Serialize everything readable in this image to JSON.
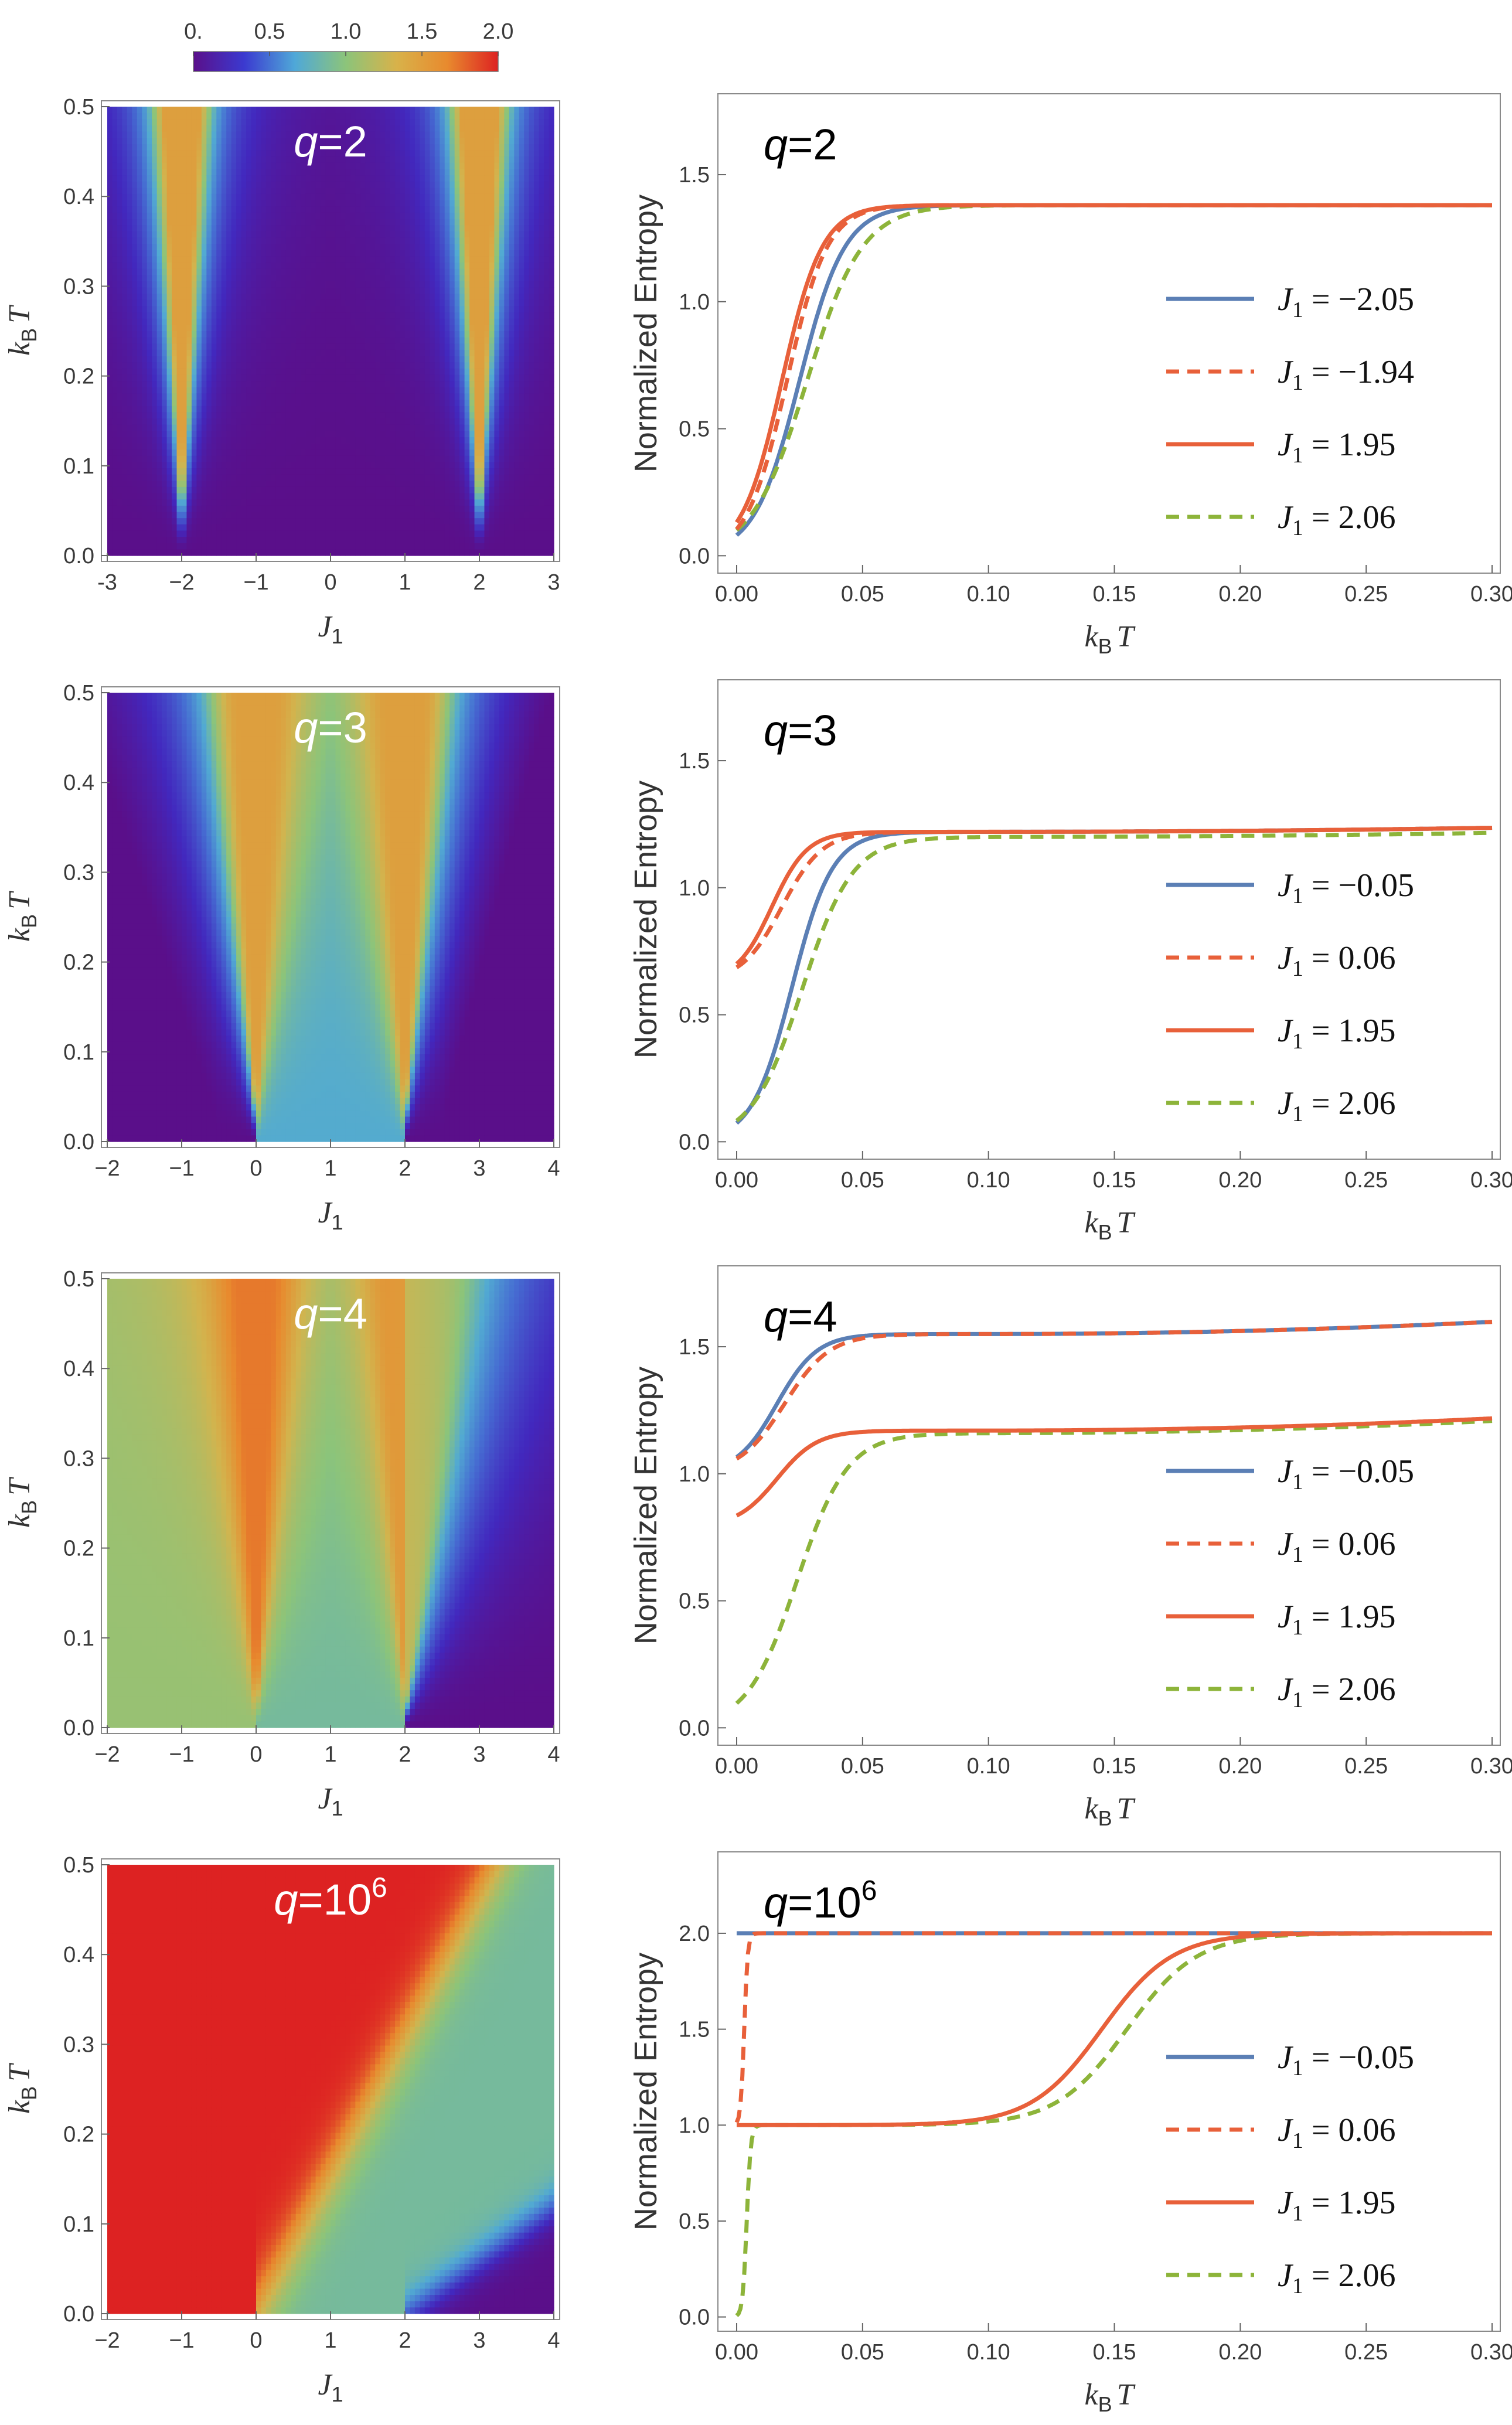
{
  "colorbar": {
    "ticks": [
      0,
      0.5,
      1.0,
      1.5,
      2.0
    ],
    "tick_labels": [
      "0.",
      "0.5",
      "1.0",
      "1.5",
      "2.0"
    ],
    "colors": [
      "#5a0f8a",
      "#3b3ad0",
      "#4fa8d8",
      "#8cc47a",
      "#d8b24a",
      "#e88a2e",
      "#dd2222"
    ]
  },
  "chart_data": [
    {
      "type": "heatmap",
      "panel": "q=2",
      "title": "q=2",
      "title_parts": [
        "q",
        "=2",
        ""
      ],
      "xlabel": "J",
      "xlabel_sub": "1",
      "ylabel": "k",
      "ylabel_sub": "B",
      "ylabel_var": "T",
      "xlim": [
        -3,
        3
      ],
      "ylim": [
        0,
        0.5
      ],
      "xticks": [
        -3,
        -2,
        -1,
        0,
        1,
        2,
        3
      ],
      "xtick_labels": [
        "-3",
        "−2",
        "−1",
        "0",
        "1",
        "2",
        "3"
      ],
      "yticks": [
        0,
        0.1,
        0.2,
        0.3,
        0.4,
        0.5
      ],
      "ytick_labels": [
        "0.0",
        "0.1",
        "0.2",
        "0.3",
        "0.4",
        "0.5"
      ],
      "critical_points": [
        -2,
        2
      ],
      "colorscale": [
        0,
        2
      ]
    },
    {
      "type": "line",
      "panel": "q=2",
      "title": "q=2",
      "title_parts": [
        "q",
        "=2",
        ""
      ],
      "xlabel": "k",
      "xlabel_sub": "B",
      "xlabel_var": "T",
      "ylabel": "Normalized Entropy",
      "xlim": [
        0,
        0.3
      ],
      "ylim": [
        -0.05,
        1.8
      ],
      "xticks": [
        0,
        0.05,
        0.1,
        0.15,
        0.2,
        0.25,
        0.3
      ],
      "xtick_labels": [
        "0.00",
        "0.05",
        "0.10",
        "0.15",
        "0.20",
        "0.25",
        "0.30"
      ],
      "yticks": [
        0,
        0.5,
        1.0,
        1.5
      ],
      "ytick_labels": [
        "0.0",
        "0.5",
        "1.0",
        "1.5"
      ],
      "series": [
        {
          "name": "J1 = −2.05",
          "label_value": "−2.05",
          "color": "#5b7fb5",
          "dash": false,
          "s0": 0,
          "s_inf": 1.38,
          "t0": 0.025,
          "w": 0.009,
          "slope": 0
        },
        {
          "name": "J1 = −1.94",
          "label_value": "−1.94",
          "color": "#e8603a",
          "dash": true,
          "s0": 0,
          "s_inf": 1.38,
          "t0": 0.02,
          "w": 0.008,
          "slope": 0
        },
        {
          "name": "J1 = 1.95",
          "label_value": "1.95",
          "color": "#e8603a",
          "dash": false,
          "s0": 0,
          "s_inf": 1.38,
          "t0": 0.018,
          "w": 0.008,
          "slope": 0
        },
        {
          "name": "J1 = 2.06",
          "label_value": "2.06",
          "color": "#8db43a",
          "dash": true,
          "s0": 0,
          "s_inf": 1.38,
          "t0": 0.028,
          "w": 0.011,
          "slope": 0
        }
      ]
    },
    {
      "type": "heatmap",
      "panel": "q=3",
      "title": "q=3",
      "title_parts": [
        "q",
        "=3",
        ""
      ],
      "xlabel": "J",
      "xlabel_sub": "1",
      "ylabel": "k",
      "ylabel_sub": "B",
      "ylabel_var": "T",
      "xlim": [
        -2,
        4
      ],
      "ylim": [
        0,
        0.5
      ],
      "xticks": [
        -2,
        -1,
        0,
        1,
        2,
        3,
        4
      ],
      "xtick_labels": [
        "−2",
        "−1",
        "0",
        "1",
        "2",
        "3",
        "4"
      ],
      "yticks": [
        0,
        0.1,
        0.2,
        0.3,
        0.4,
        0.5
      ],
      "ytick_labels": [
        "0.0",
        "0.1",
        "0.2",
        "0.3",
        "0.4",
        "0.5"
      ],
      "critical_points": [
        0,
        2
      ],
      "colorscale": [
        0,
        2
      ]
    },
    {
      "type": "line",
      "panel": "q=3",
      "title": "q=3",
      "title_parts": [
        "q",
        "=3",
        ""
      ],
      "xlabel": "k",
      "xlabel_sub": "B",
      "xlabel_var": "T",
      "ylabel": "Normalized Entropy",
      "xlim": [
        0,
        0.3
      ],
      "ylim": [
        -0.05,
        1.8
      ],
      "xticks": [
        0,
        0.05,
        0.1,
        0.15,
        0.2,
        0.25,
        0.3
      ],
      "xtick_labels": [
        "0.00",
        "0.05",
        "0.10",
        "0.15",
        "0.20",
        "0.25",
        "0.30"
      ],
      "yticks": [
        0,
        0.5,
        1.0,
        1.5
      ],
      "ytick_labels": [
        "0.0",
        "0.5",
        "1.0",
        "1.5"
      ],
      "series": [
        {
          "name": "J1 = −0.05",
          "label_value": "−0.05",
          "color": "#5b7fb5",
          "dash": false,
          "s0": 0,
          "s_inf": 1.22,
          "t0": 0.022,
          "w": 0.008,
          "slope": 0.1
        },
        {
          "name": "J1 = 0.06",
          "label_value": "0.06",
          "color": "#e8603a",
          "dash": true,
          "s0": 0.63,
          "s_inf": 1.22,
          "t0": 0.018,
          "w": 0.008,
          "slope": 0.1
        },
        {
          "name": "J1 = 1.95",
          "label_value": "1.95",
          "color": "#e8603a",
          "dash": false,
          "s0": 0.63,
          "s_inf": 1.22,
          "t0": 0.014,
          "w": 0.007,
          "slope": 0.1
        },
        {
          "name": "J1 = 2.06",
          "label_value": "2.06",
          "color": "#8db43a",
          "dash": true,
          "s0": 0,
          "s_inf": 1.2,
          "t0": 0.026,
          "w": 0.01,
          "slope": 0.1
        }
      ]
    },
    {
      "type": "heatmap",
      "panel": "q=4",
      "title": "q=4",
      "title_parts": [
        "q",
        "=4",
        ""
      ],
      "xlabel": "J",
      "xlabel_sub": "1",
      "ylabel": "k",
      "ylabel_sub": "B",
      "ylabel_var": "T",
      "xlim": [
        -2,
        4
      ],
      "ylim": [
        0,
        0.5
      ],
      "xticks": [
        -2,
        -1,
        0,
        1,
        2,
        3,
        4
      ],
      "xtick_labels": [
        "−2",
        "−1",
        "0",
        "1",
        "2",
        "3",
        "4"
      ],
      "yticks": [
        0,
        0.1,
        0.2,
        0.3,
        0.4,
        0.5
      ],
      "ytick_labels": [
        "0.0",
        "0.1",
        "0.2",
        "0.3",
        "0.4",
        "0.5"
      ],
      "critical_points": [
        0,
        2
      ],
      "colorscale": [
        0,
        2
      ]
    },
    {
      "type": "line",
      "panel": "q=4",
      "title": "q=4",
      "title_parts": [
        "q",
        "=4",
        ""
      ],
      "xlabel": "k",
      "xlabel_sub": "B",
      "xlabel_var": "T",
      "ylabel": "Normalized Entropy",
      "xlim": [
        0,
        0.3
      ],
      "ylim": [
        -0.05,
        1.8
      ],
      "xticks": [
        0,
        0.05,
        0.1,
        0.15,
        0.2,
        0.25,
        0.3
      ],
      "xtick_labels": [
        "0.00",
        "0.05",
        "0.10",
        "0.15",
        "0.20",
        "0.25",
        "0.30"
      ],
      "yticks": [
        0,
        0.5,
        1.0,
        1.5
      ],
      "ytick_labels": [
        "0.0",
        "0.5",
        "1.0",
        "1.5"
      ],
      "series": [
        {
          "name": "J1 = −0.05",
          "label_value": "−0.05",
          "color": "#5b7fb5",
          "dash": false,
          "s0": 1.0,
          "s_inf": 1.55,
          "t0": 0.016,
          "w": 0.008,
          "slope": 0.3
        },
        {
          "name": "J1 = 0.06",
          "label_value": "0.06",
          "color": "#e8603a",
          "dash": true,
          "s0": 1.0,
          "s_inf": 1.55,
          "t0": 0.019,
          "w": 0.009,
          "slope": 0.3
        },
        {
          "name": "J1 = 1.95",
          "label_value": "1.95",
          "color": "#e8603a",
          "dash": false,
          "s0": 0.79,
          "s_inf": 1.17,
          "t0": 0.016,
          "w": 0.008,
          "slope": 0.3
        },
        {
          "name": "J1 = 2.06",
          "label_value": "2.06",
          "color": "#8db43a",
          "dash": true,
          "s0": 0,
          "s_inf": 1.16,
          "t0": 0.024,
          "w": 0.01,
          "slope": 0.3
        }
      ]
    },
    {
      "type": "heatmap",
      "panel": "q=10^6",
      "title": "q=10^6",
      "title_parts": [
        "q",
        "=10",
        "6"
      ],
      "xlabel": "J",
      "xlabel_sub": "1",
      "ylabel": "k",
      "ylabel_sub": "B",
      "ylabel_var": "T",
      "xlim": [
        -2,
        4
      ],
      "ylim": [
        0,
        0.5
      ],
      "xticks": [
        -2,
        -1,
        0,
        1,
        2,
        3,
        4
      ],
      "xtick_labels": [
        "−2",
        "−1",
        "0",
        "1",
        "2",
        "3",
        "4"
      ],
      "yticks": [
        0,
        0.1,
        0.2,
        0.3,
        0.4,
        0.5
      ],
      "ytick_labels": [
        "0.0",
        "0.1",
        "0.2",
        "0.3",
        "0.4",
        "0.5"
      ],
      "critical_points": [
        0,
        2
      ],
      "colorscale": [
        0,
        2
      ]
    },
    {
      "type": "line",
      "panel": "q=10^6",
      "title": "q=10^6",
      "title_parts": [
        "q",
        "=10",
        "6"
      ],
      "xlabel": "k",
      "xlabel_sub": "B",
      "xlabel_var": "T",
      "ylabel": "Normalized Entropy",
      "xlim": [
        0,
        0.3
      ],
      "ylim": [
        -0.05,
        2.4
      ],
      "xticks": [
        0,
        0.05,
        0.1,
        0.15,
        0.2,
        0.25,
        0.3
      ],
      "xtick_labels": [
        "0.00",
        "0.05",
        "0.10",
        "0.15",
        "0.20",
        "0.25",
        "0.30"
      ],
      "yticks": [
        0,
        0.5,
        1.0,
        1.5,
        2.0
      ],
      "ytick_labels": [
        "0.0",
        "0.5",
        "1.0",
        "1.5",
        "2.0"
      ],
      "series": [
        {
          "name": "J1 = −0.05",
          "label_value": "−0.05",
          "color": "#5b7fb5",
          "dash": false,
          "s0": 2.0,
          "s_inf": 2.0,
          "t0": 0.1,
          "w": 0.01,
          "slope": 0
        },
        {
          "name": "J1 = 0.06",
          "label_value": "0.06",
          "color": "#e8603a",
          "dash": true,
          "s0": 1.0,
          "s_inf": 2.0,
          "t0": 0.003,
          "w": 0.0007,
          "slope": 0
        },
        {
          "name": "J1 = 1.95",
          "label_value": "1.95",
          "color": "#e8603a",
          "dash": false,
          "s0": 1.0,
          "s_inf": 2.0,
          "t0": 0.145,
          "w": 0.014,
          "slope": 0
        },
        {
          "name": "J1 = 2.06",
          "label_value": "2.06",
          "color": "#8db43a",
          "dash": true,
          "s0": 0,
          "s_inf": 1.0,
          "t0": 0.004,
          "w": 0.0008,
          "slope": 0,
          "s_inf2": 2.0,
          "t1": 0.155,
          "w1": 0.014
        }
      ]
    }
  ]
}
